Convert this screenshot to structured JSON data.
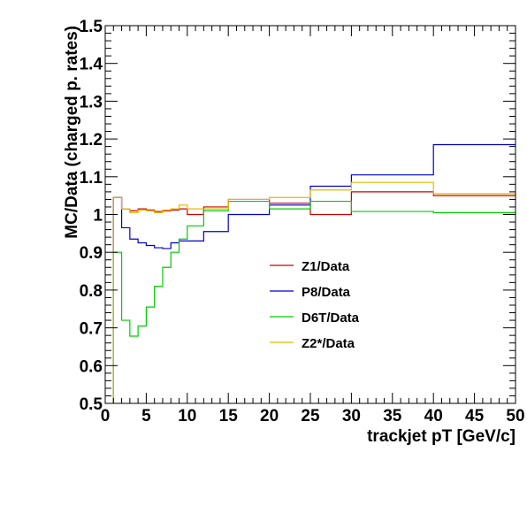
{
  "chart_data": {
    "type": "line",
    "step": true,
    "title": "",
    "xlabel": "trackjet pT [GeV/c]",
    "ylabel": "MC/Data (charged p. rates)",
    "xlim": [
      0,
      50
    ],
    "ylim": [
      0.5,
      1.5
    ],
    "xticks": [
      0,
      5,
      10,
      15,
      20,
      25,
      30,
      35,
      40,
      45,
      50
    ],
    "yticks": [
      0.5,
      0.6,
      0.7,
      0.8,
      0.9,
      1,
      1.1,
      1.2,
      1.3,
      1.4,
      1.5
    ],
    "xtick_labels": [
      "0",
      "5",
      "10",
      "15",
      "20",
      "25",
      "30",
      "35",
      "40",
      "45",
      "50"
    ],
    "ytick_labels": [
      "0.5",
      "0.6",
      "0.7",
      "0.8",
      "0.9",
      "1",
      "1.1",
      "1.2",
      "1.3",
      "1.4",
      "1.5"
    ],
    "bin_edges": [
      1,
      2,
      3,
      4,
      5,
      6,
      7,
      8,
      9,
      10,
      12,
      15,
      20,
      25,
      30,
      40,
      50
    ],
    "grid": false,
    "legend_position": "center",
    "series": [
      {
        "name": "Z1/Data",
        "color": "#cc0000",
        "values": [
          1.045,
          1.015,
          1.01,
          1.015,
          1.012,
          1.008,
          1.01,
          1.012,
          1.015,
          1.0,
          1.02,
          1.04,
          1.03,
          1.0,
          1.06,
          1.05
        ]
      },
      {
        "name": "P8/Data",
        "color": "#0000cc",
        "values": [
          1.045,
          0.965,
          0.935,
          0.925,
          0.918,
          0.912,
          0.91,
          0.925,
          0.93,
          0.93,
          0.955,
          1.0,
          1.025,
          1.075,
          1.105,
          1.185
        ]
      },
      {
        "name": "D6T/Data",
        "color": "#00cc00",
        "values": [
          0.9,
          0.72,
          0.678,
          0.705,
          0.755,
          0.81,
          0.86,
          0.9,
          0.935,
          0.97,
          1.01,
          1.035,
          1.015,
          1.035,
          1.008,
          1.005
        ]
      },
      {
        "name": "Z2*/Data",
        "color": "#e6b800",
        "values": [
          1.045,
          1.015,
          1.005,
          1.012,
          1.01,
          1.005,
          1.012,
          1.015,
          1.025,
          1.015,
          1.015,
          1.04,
          1.045,
          1.065,
          1.085,
          1.055
        ]
      }
    ]
  }
}
